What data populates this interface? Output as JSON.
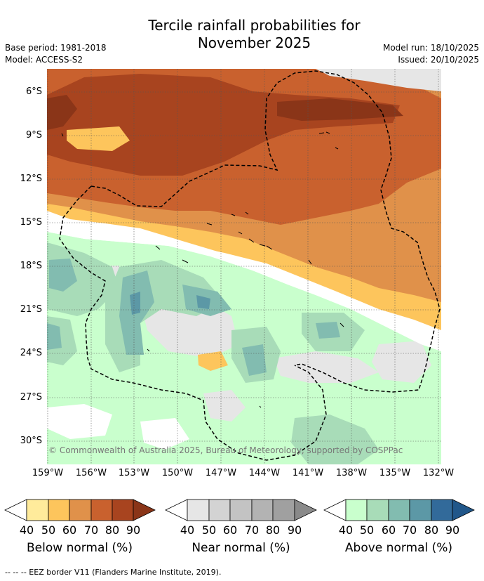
{
  "title_line1": "Tercile rainfall probabilities for",
  "title_line2": "November 2025",
  "base_period": "Base period: 1981-2018",
  "model": "Model: ACCESS-S2",
  "model_run": "Model run: 18/10/2025",
  "issued": "Issued: 20/10/2025",
  "lat_labels": [
    "6°S",
    "9°S",
    "12°S",
    "15°S",
    "18°S",
    "21°S",
    "24°S",
    "27°S",
    "30°S"
  ],
  "lon_labels": [
    "159°W",
    "156°W",
    "153°W",
    "150°W",
    "147°W",
    "144°W",
    "141°W",
    "138°W",
    "135°W",
    "132°W"
  ],
  "copyright": "© Commonwealth of Australia 2025, Bureau of Meteorology, supported by COSPPac",
  "colorbars": [
    {
      "title": "Below normal (%)",
      "ticks": [
        "40",
        "50",
        "60",
        "70",
        "80",
        "90"
      ],
      "colors": [
        "#ffeb9b",
        "#fdc55c",
        "#e0914a",
        "#c9612e",
        "#a8441f",
        "#8a3518"
      ]
    },
    {
      "title": "Near normal (%)",
      "ticks": [
        "40",
        "50",
        "60",
        "70",
        "80",
        "90"
      ],
      "colors": [
        "#e6e6e6",
        "#d3d3d3",
        "#c3c3c3",
        "#b3b3b3",
        "#a0a0a0",
        "#8a8a8a"
      ]
    },
    {
      "title": "Above normal (%)",
      "ticks": [
        "40",
        "50",
        "60",
        "70",
        "80",
        "90"
      ],
      "colors": [
        "#c9ffcd",
        "#a8dcb8",
        "#82bcb0",
        "#5c98a6",
        "#326a9a",
        "#21578a"
      ]
    }
  ],
  "footnote": "-- -- -- EEZ border V11 (Flanders Marine Institute, 2019)."
}
